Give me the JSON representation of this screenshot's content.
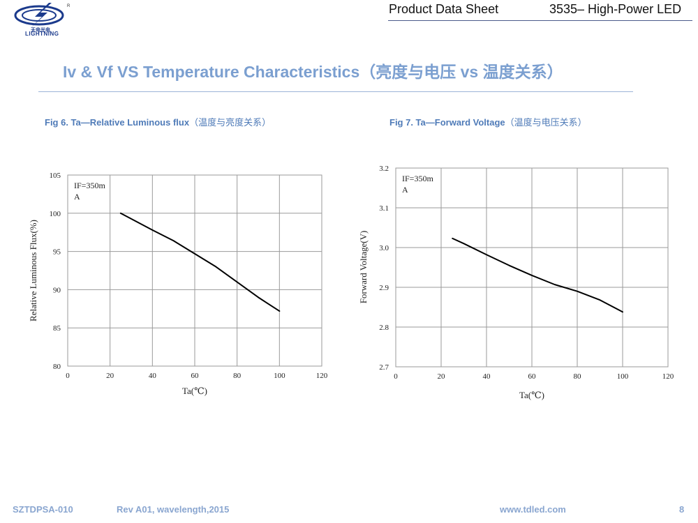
{
  "header": {
    "logo": {
      "cn_text": "天电光电",
      "en_text": "LIGHTNING",
      "reg_mark": "R"
    },
    "doc_type": "Product Data Sheet",
    "product": "3535– High-Power LED"
  },
  "main_title": "Iv & Vf VS  Temperature Characteristics（亮度与电压 vs 温度关系）",
  "figures": [
    {
      "caption_en": "Fig 6. Ta—Relative Luminous flux",
      "caption_cn": "（温度与亮度关系）"
    },
    {
      "caption_en": "Fig 7. Ta—Forward Voltage",
      "caption_cn": "（温度与电压关系）"
    }
  ],
  "chart_data": [
    {
      "type": "line",
      "title": "",
      "xlabel": "Ta(℃)",
      "ylabel": "Relative Luminous Flux(%)",
      "xlim": [
        0,
        120
      ],
      "ylim": [
        80,
        105
      ],
      "x_ticks": [
        "0",
        "20",
        "40",
        "60",
        "80",
        "100",
        "120"
      ],
      "y_ticks": [
        "80",
        "85",
        "90",
        "95",
        "100",
        "105"
      ],
      "grid": true,
      "annotation": [
        "IF=350m",
        "A"
      ],
      "series": [
        {
          "x": [
            25,
            40,
            50,
            60,
            70,
            80,
            90,
            100
          ],
          "y": [
            100,
            97.8,
            96.4,
            94.7,
            93.0,
            91.0,
            89.0,
            87.2
          ]
        }
      ],
      "line_color": "#000000"
    },
    {
      "type": "line",
      "title": "",
      "xlabel": "Ta(℃)",
      "ylabel": "Forward Voltage(V)",
      "xlim": [
        0,
        120
      ],
      "ylim": [
        2.7,
        3.2
      ],
      "x_ticks": [
        "0",
        "20",
        "40",
        "60",
        "80",
        "100",
        "120"
      ],
      "y_ticks": [
        "2.7",
        "2.8",
        "2.9",
        "3.0",
        "3.1",
        "3.2"
      ],
      "grid": true,
      "annotation": [
        "IF=350m",
        "A"
      ],
      "series": [
        {
          "x": [
            25,
            30,
            40,
            50,
            60,
            70,
            80,
            90,
            100
          ],
          "y": [
            3.023,
            3.01,
            2.982,
            2.955,
            2.93,
            2.907,
            2.89,
            2.868,
            2.838
          ]
        }
      ],
      "line_color": "#000000"
    }
  ],
  "footer": {
    "doc_id": "SZTDPSA-010",
    "revision": "Rev A01, wavelength,2015",
    "url": "www.tdled.com",
    "page": "8"
  }
}
